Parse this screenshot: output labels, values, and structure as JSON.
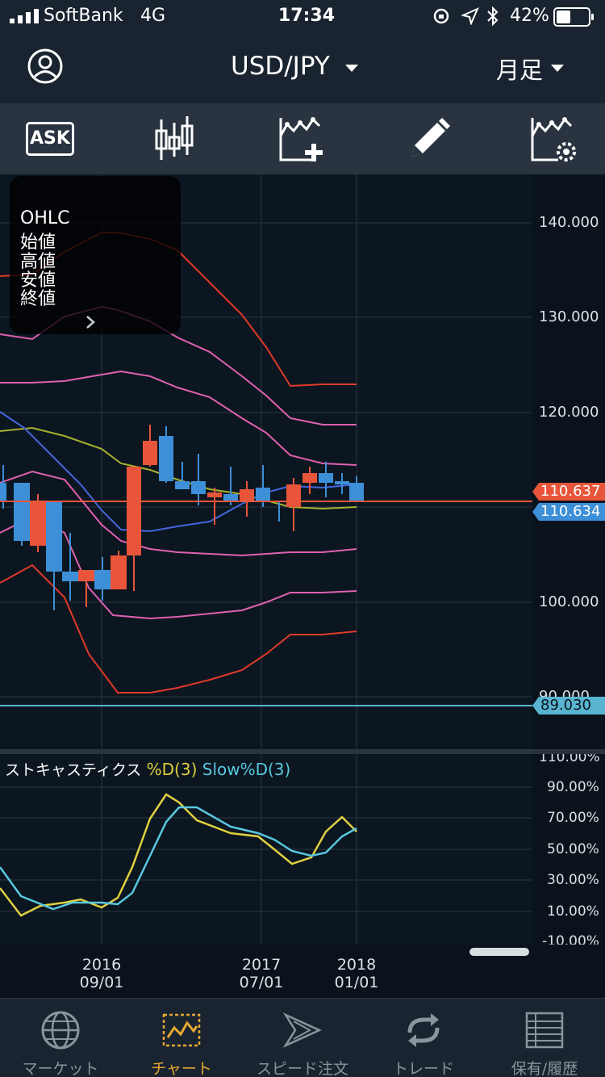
{
  "status_bar": {
    "carrier": "SoftBank",
    "network": "4G",
    "time": "17:34",
    "battery": "42%"
  },
  "header": {
    "pair": "USD/JPY",
    "timeframe": "月足",
    "profile_icon": "user-circle-icon",
    "pair_chevron_icon": "caret-down-icon"
  },
  "toolbar": {
    "ask_label": "ASK",
    "tools": [
      "candlestick-icon",
      "add-indicator-icon",
      "pencil-icon",
      "indicator-settings-icon"
    ]
  },
  "ohlc_panel": {
    "title": "OHLC",
    "open_label": "始値",
    "high_label": "高値",
    "low_label": "安値",
    "close_label": "終値",
    "expand_icon": "chevron-right-icon"
  },
  "price_axis": {
    "ticks": [
      "140.000",
      "130.000",
      "120.000",
      "100.000",
      "90.000"
    ],
    "bid_price": "110.637",
    "ask_price": "110.634",
    "line_price": "89.030"
  },
  "stochastic": {
    "name": "ストキャスティクス",
    "d_label": "%D(3)",
    "slow_label": "Slow%D(3)",
    "ticks": [
      "110.00%",
      "90.00%",
      "70.00%",
      "50.00%",
      "30.00%",
      "10.00%",
      "-10.00%"
    ]
  },
  "time_axis": [
    {
      "year": "2016",
      "date": "09/01"
    },
    {
      "year": "2017",
      "date": "07/01"
    },
    {
      "year": "2018",
      "date": "01/01"
    }
  ],
  "colors": {
    "up_candle": "#e8553a",
    "down_candle": "#3d8fd8",
    "accent": "#e8a830",
    "stoch_d": "#e0d040",
    "stoch_slow": "#58c8e0",
    "bb_outer": "#e03a2a",
    "bb_mid": "#e060b0",
    "sma": "#a8b030",
    "ema": "#4466dd",
    "current_line": "#e8553a",
    "horizontal_line": "#58b4d0"
  },
  "tab_bar": {
    "tabs": [
      {
        "label": "マーケット",
        "icon": "globe-icon"
      },
      {
        "label": "チャート",
        "icon": "chart-icon"
      },
      {
        "label": "スピード注文",
        "icon": "speed-order-icon"
      },
      {
        "label": "トレード",
        "icon": "trade-refresh-icon"
      },
      {
        "label": "保有/履歴",
        "icon": "list-history-icon"
      }
    ],
    "active_index": 1
  }
}
